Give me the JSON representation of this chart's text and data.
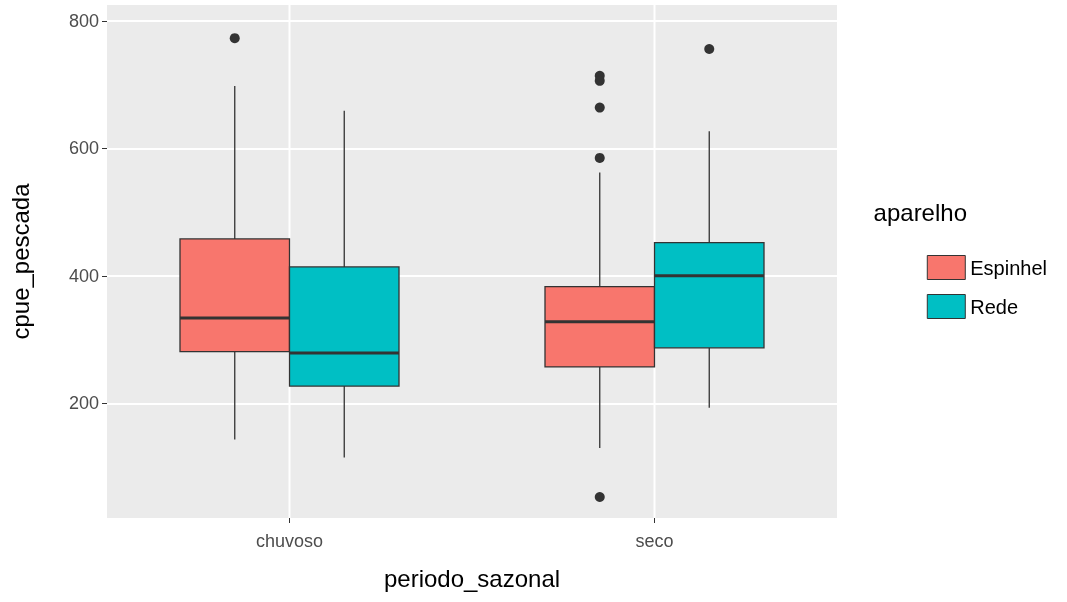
{
  "chart_data": {
    "type": "box",
    "xlabel": "periodo_sazonal",
    "ylabel": "cpue_pescada",
    "legend_title": "aparelho",
    "categories": [
      "chuvoso",
      "seco"
    ],
    "series": [
      {
        "name": "Espinhel",
        "color": "#f8766d",
        "boxes": [
          {
            "low": 143,
            "q1": 281,
            "median": 334,
            "q3": 458,
            "high": 698,
            "outliers": [
              773
            ]
          },
          {
            "low": 130,
            "q1": 257,
            "median": 328,
            "q3": 383,
            "high": 562,
            "outliers": [
              714,
              706,
              664,
              585,
              53
            ]
          }
        ]
      },
      {
        "name": "Rede",
        "color": "#00bfc4",
        "boxes": [
          {
            "low": 115,
            "q1": 227,
            "median": 279,
            "q3": 414,
            "high": 659
          },
          {
            "low": 193,
            "q1": 287,
            "median": 400,
            "q3": 452,
            "high": 627,
            "outliers": [
              756
            ]
          }
        ]
      }
    ],
    "ylim": [
      20,
      825
    ],
    "yticks": [
      200,
      400,
      600,
      800
    ],
    "grid": true,
    "legend": "right"
  }
}
